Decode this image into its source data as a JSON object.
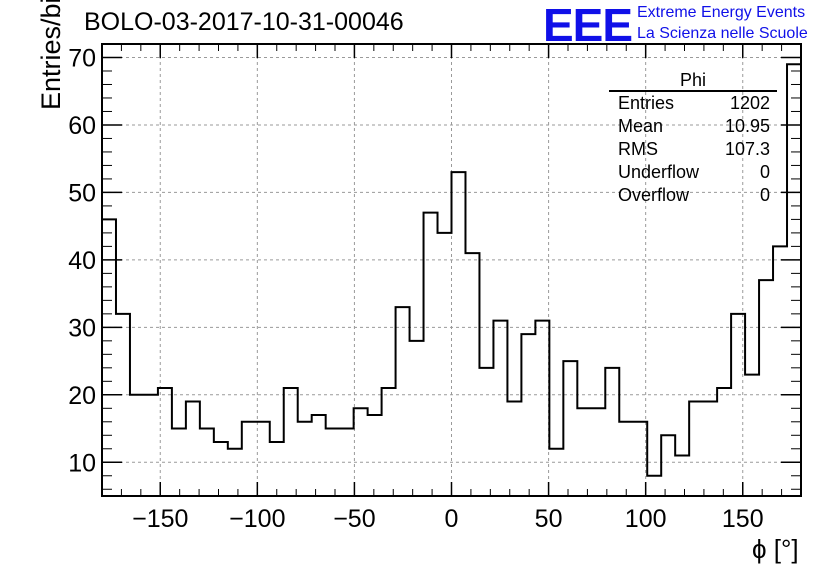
{
  "title": "BOLO-03-2017-10-31-00046",
  "logo": {
    "mark": "EEE",
    "line1": "Extreme Energy Events",
    "line2": "La Scienza nelle Scuole",
    "color": "#1010e8"
  },
  "stats": {
    "name": "Phi",
    "rows": [
      {
        "label": "Entries",
        "value": "1202"
      },
      {
        "label": "Mean",
        "value": "10.95"
      },
      {
        "label": "RMS",
        "value": "107.3"
      },
      {
        "label": "Underflow",
        "value": "0"
      },
      {
        "label": "Overflow",
        "value": "0"
      }
    ]
  },
  "chart_data": {
    "type": "bar",
    "style": "step-histogram",
    "title": "BOLO-03-2017-10-31-00046",
    "xlabel": "ϕ [°]",
    "ylabel": "Entries/bin",
    "xlim": [
      -180,
      180
    ],
    "ylim": [
      5,
      72
    ],
    "bin_width": 7.2,
    "xticks": [
      -150,
      -100,
      -50,
      0,
      50,
      100,
      150
    ],
    "xtick_labels": [
      "−150",
      "−100",
      "−50",
      "0",
      "50",
      "100",
      "150"
    ],
    "yticks": [
      10,
      20,
      30,
      40,
      50,
      60,
      70
    ],
    "grid": true,
    "line_color": "#000000",
    "values": [
      46,
      32,
      20,
      20,
      21,
      15,
      19,
      15,
      13,
      12,
      16,
      16,
      13,
      21,
      16,
      17,
      15,
      15,
      18,
      17,
      21,
      33,
      28,
      47,
      44,
      53,
      41,
      24,
      31,
      19,
      29,
      31,
      12,
      25,
      18,
      18,
      24,
      16,
      16,
      8,
      14,
      11,
      19,
      19,
      21,
      32,
      23,
      37,
      42,
      69
    ]
  }
}
